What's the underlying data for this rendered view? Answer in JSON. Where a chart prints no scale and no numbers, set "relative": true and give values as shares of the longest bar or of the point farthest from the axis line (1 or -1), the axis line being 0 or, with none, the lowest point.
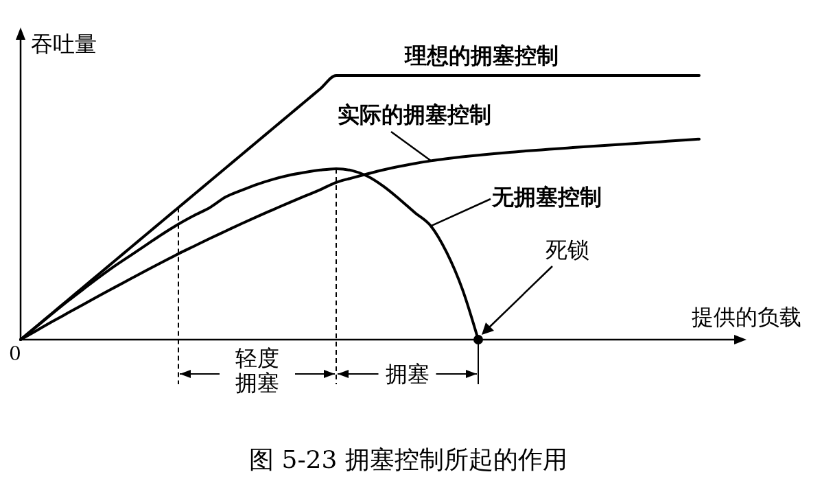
{
  "chart_data": {
    "type": "line",
    "title": "图 5-23  拥塞控制所起的作用",
    "xlabel": "提供的负载",
    "ylabel": "吞吐量",
    "relative": true,
    "categories": [
      null,
      null,
      null,
      null,
      null,
      null,
      null,
      null,
      null,
      null,
      null,
      null,
      null,
      null,
      null,
      null,
      null,
      null,
      null,
      null,
      null,
      null,
      null,
      null,
      null,
      null,
      null,
      null,
      null,
      null,
      null,
      null,
      null,
      null,
      null,
      null,
      null,
      null,
      null,
      null,
      null,
      null,
      null,
      null
    ],
    "series": [
      {
        "name": "理想的拥塞控制",
        "color": "#000000",
        "values": [
          0,
          0.05,
          0.1,
          0.15,
          0.2,
          0.25,
          0.3,
          0.35,
          0.4,
          0.45,
          0.5,
          0.55,
          0.6,
          0.65,
          0.7,
          0.75,
          0.8,
          0.85,
          0.9,
          0.95,
          1,
          1,
          1,
          1,
          1,
          1,
          1,
          1,
          1,
          1,
          1,
          1,
          1,
          1,
          1,
          1,
          1,
          1,
          1,
          1,
          1,
          1,
          1,
          1
        ]
      },
      {
        "name": "实际的拥塞控制",
        "color": "#000000",
        "values": [
          0,
          0.034,
          0.068,
          0.101,
          0.134,
          0.167,
          0.199,
          0.231,
          0.263,
          0.294,
          0.325,
          0.354,
          0.383,
          0.411,
          0.439,
          0.466,
          0.492,
          0.518,
          0.543,
          0.568,
          0.595,
          0.612,
          0.628,
          0.643,
          0.656,
          0.667,
          0.677,
          0.685,
          0.692,
          0.698,
          0.704,
          0.709,
          0.714,
          0.718,
          0.723,
          0.727,
          0.731,
          0.735,
          0.739,
          0.743,
          0.747,
          0.751,
          0.755,
          0.759
        ]
      },
      {
        "name": "无拥塞控制",
        "color": "#000000",
        "values": [
          0,
          0.049,
          0.098,
          0.146,
          0.192,
          0.237,
          0.28,
          0.32,
          0.36,
          0.4,
          0.437,
          0.47,
          0.5,
          0.54,
          0.565,
          0.588,
          0.607,
          0.622,
          0.633,
          0.642,
          0.647,
          0.64,
          0.618,
          0.58,
          0.532,
          0.48,
          0.43,
          0.33,
          0.19,
          0,
          null,
          null,
          null,
          null,
          null,
          null,
          null,
          null,
          null,
          null,
          null,
          null,
          null,
          null
        ]
      }
    ],
    "annotations": [
      "0",
      "死锁",
      "轻度",
      "拥塞",
      "拥塞"
    ]
  }
}
